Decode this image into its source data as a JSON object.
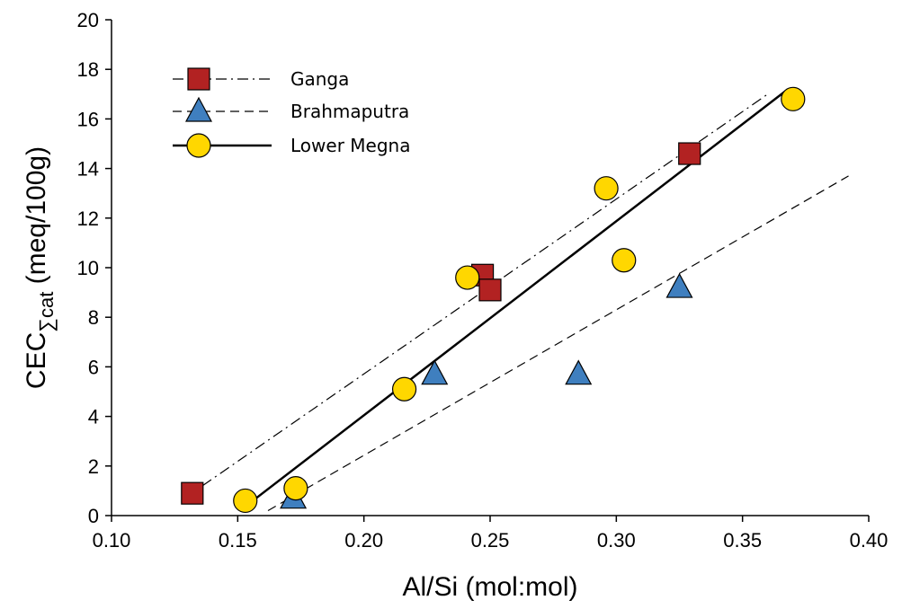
{
  "chart_data": {
    "type": "scatter",
    "xlabel": "Al/Si (mol:mol)",
    "ylabel": {
      "prefix": "CEC",
      "subscript": "∑cat",
      "suffix": " (meq/100g)"
    },
    "xlim": [
      0.1,
      0.4
    ],
    "ylim": [
      0,
      20
    ],
    "xticks": [
      "0.10",
      "0.15",
      "0.20",
      "0.25",
      "0.30",
      "0.35",
      "0.40"
    ],
    "yticks": [
      "0",
      "2",
      "4",
      "6",
      "8",
      "10",
      "12",
      "14",
      "16",
      "18",
      "20"
    ],
    "grid": false,
    "legend_position": "top-left",
    "series": [
      {
        "name": "Ganga",
        "marker": "square",
        "color": "#b22222",
        "line_style": "dash-dot",
        "points": [
          [
            0.132,
            0.9
          ],
          [
            0.247,
            9.7
          ],
          [
            0.25,
            9.1
          ],
          [
            0.329,
            14.6
          ]
        ],
        "fit": [
          [
            0.136,
            1.2
          ],
          [
            0.36,
            17.0
          ]
        ]
      },
      {
        "name": "Brahmaputra",
        "marker": "triangle",
        "color": "#3f7fbf",
        "line_style": "dashed",
        "points": [
          [
            0.172,
            0.7
          ],
          [
            0.228,
            5.7
          ],
          [
            0.285,
            5.7
          ],
          [
            0.325,
            9.2
          ]
        ],
        "fit": [
          [
            0.162,
            0.2
          ],
          [
            0.392,
            13.7
          ]
        ]
      },
      {
        "name": "Lower Megna",
        "marker": "circle",
        "color": "#ffd700",
        "line_style": "solid",
        "points": [
          [
            0.153,
            0.6
          ],
          [
            0.173,
            1.1
          ],
          [
            0.216,
            5.1
          ],
          [
            0.241,
            9.6
          ],
          [
            0.296,
            13.2
          ],
          [
            0.303,
            10.3
          ],
          [
            0.37,
            16.8
          ]
        ],
        "fit": [
          [
            0.156,
            0.6
          ],
          [
            0.368,
            17.2
          ]
        ]
      }
    ]
  }
}
